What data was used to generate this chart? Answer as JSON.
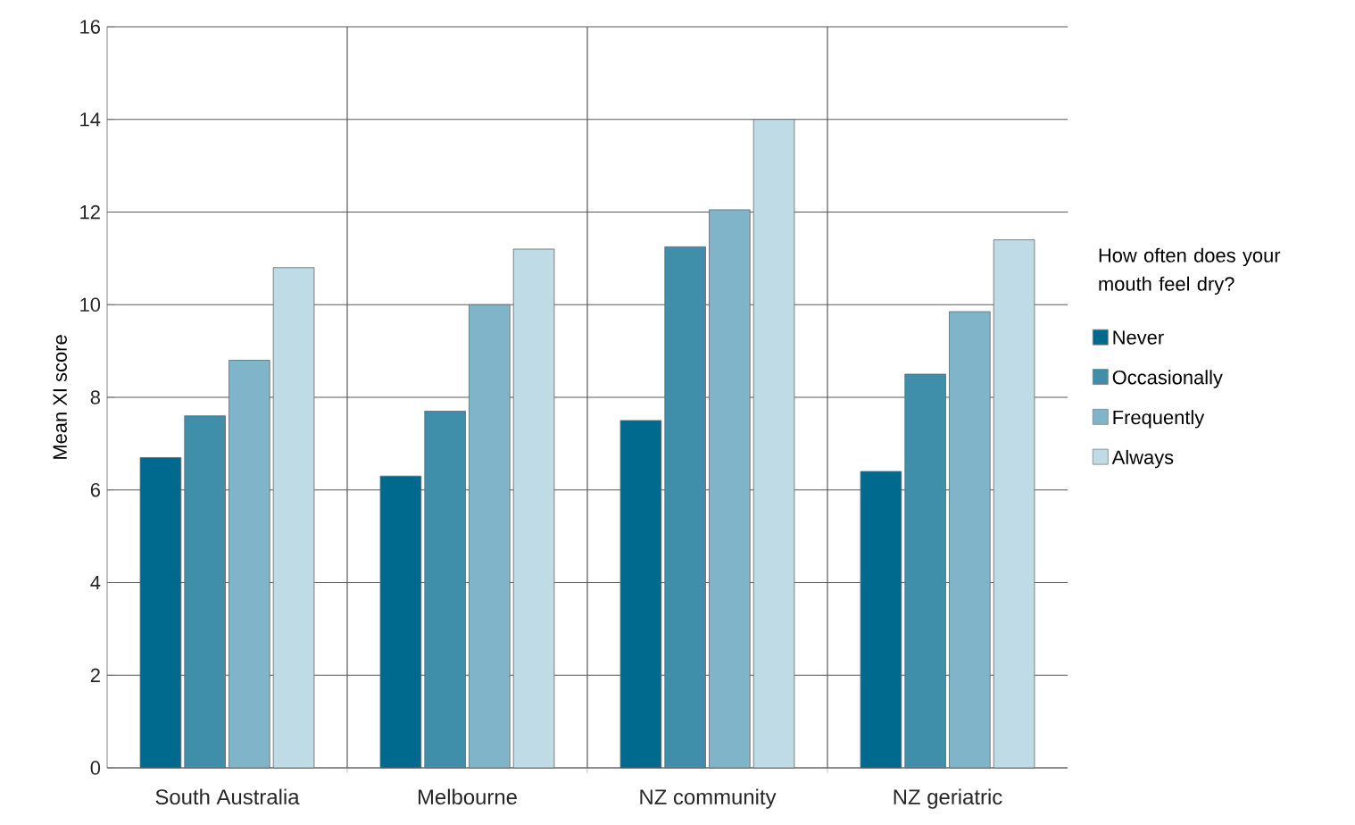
{
  "chart_data": {
    "type": "bar",
    "ylabel": "Mean XI score",
    "legend_title": "How often does your mouth feel dry?",
    "categories": [
      "South Australia",
      "Melbourne",
      "NZ community",
      "NZ geriatric"
    ],
    "series": [
      {
        "name": "Never",
        "color": "#006a8e",
        "values": [
          6.7,
          6.3,
          7.5,
          6.4
        ]
      },
      {
        "name": "Occasionally",
        "color": "#3f8fab",
        "values": [
          7.6,
          7.7,
          11.25,
          8.5
        ]
      },
      {
        "name": "Frequently",
        "color": "#80b5c9",
        "values": [
          8.8,
          10.0,
          12.05,
          9.85
        ]
      },
      {
        "name": "Always",
        "color": "#bfdbe5",
        "values": [
          10.8,
          11.2,
          14.0,
          11.4
        ]
      }
    ],
    "ylim": [
      0,
      16
    ],
    "yticks": [
      0,
      2,
      4,
      6,
      8,
      10,
      12,
      14,
      16
    ],
    "grid": true,
    "legend": "right"
  }
}
